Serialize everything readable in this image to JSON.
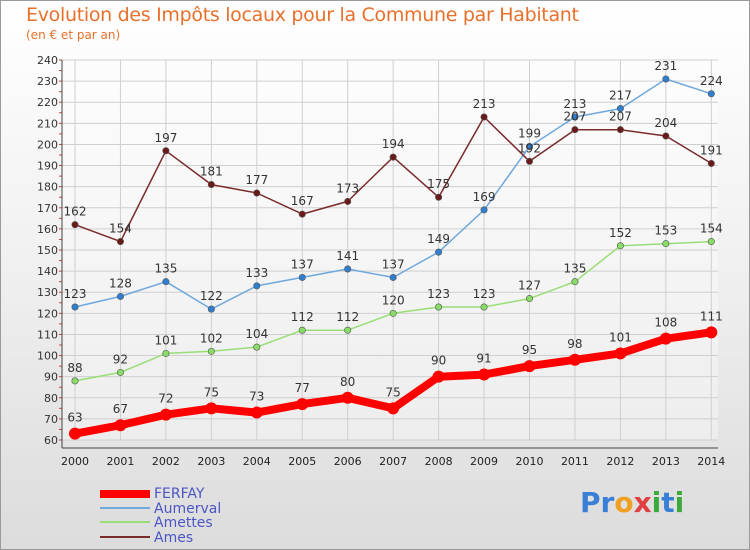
{
  "header": {
    "title": "Evolution des Impôts locaux pour la Commune par Habitant",
    "subtitle": "(en € et par an)"
  },
  "logo": {
    "text": "Proxiti",
    "letters": [
      {
        "ch": "P",
        "color": "#3a7fd6"
      },
      {
        "ch": "r",
        "color": "#3a7fd6"
      },
      {
        "ch": "o",
        "color": "#f0a020"
      },
      {
        "ch": "x",
        "color": "#e04040"
      },
      {
        "ch": "i",
        "color": "#3aaa3a"
      },
      {
        "ch": "t",
        "color": "#3a7fd6"
      },
      {
        "ch": "i",
        "color": "#3aaa3a"
      }
    ]
  },
  "chart_data": {
    "type": "line",
    "title": "Evolution des Impôts locaux pour la Commune par Habitant",
    "subtitle": "(en € et par an)",
    "x": [
      2000,
      2001,
      2002,
      2003,
      2004,
      2005,
      2006,
      2007,
      2008,
      2009,
      2010,
      2011,
      2012,
      2013,
      2014
    ],
    "ylim": [
      60,
      240
    ],
    "yticks": [
      60,
      70,
      80,
      90,
      100,
      110,
      120,
      130,
      140,
      150,
      160,
      170,
      180,
      190,
      200,
      210,
      220,
      230,
      240
    ],
    "grid": true,
    "legend_position": "bottom-left",
    "series": [
      {
        "name": "FERFAY",
        "color": "#ff0000",
        "marker": "#ff0000",
        "thick": true,
        "values": [
          63,
          67,
          72,
          75,
          73,
          77,
          80,
          75,
          90,
          91,
          95,
          98,
          101,
          108,
          111
        ]
      },
      {
        "name": "Aumerval",
        "color": "#6fa8dc",
        "marker": "#2f7fd0",
        "thick": false,
        "values": [
          123,
          128,
          135,
          122,
          133,
          137,
          141,
          137,
          149,
          169,
          199,
          213,
          217,
          231,
          224
        ]
      },
      {
        "name": "Amettes",
        "color": "#99dd77",
        "marker": "#88dd66",
        "thick": false,
        "values": [
          88,
          92,
          101,
          102,
          104,
          112,
          112,
          120,
          123,
          123,
          127,
          135,
          152,
          153,
          154
        ]
      },
      {
        "name": "Ames",
        "color": "#7a2a2a",
        "marker": "#6b1a1a",
        "thick": false,
        "values": [
          162,
          154,
          197,
          181,
          177,
          167,
          173,
          194,
          175,
          213,
          192,
          207,
          207,
          204,
          191
        ]
      }
    ]
  }
}
